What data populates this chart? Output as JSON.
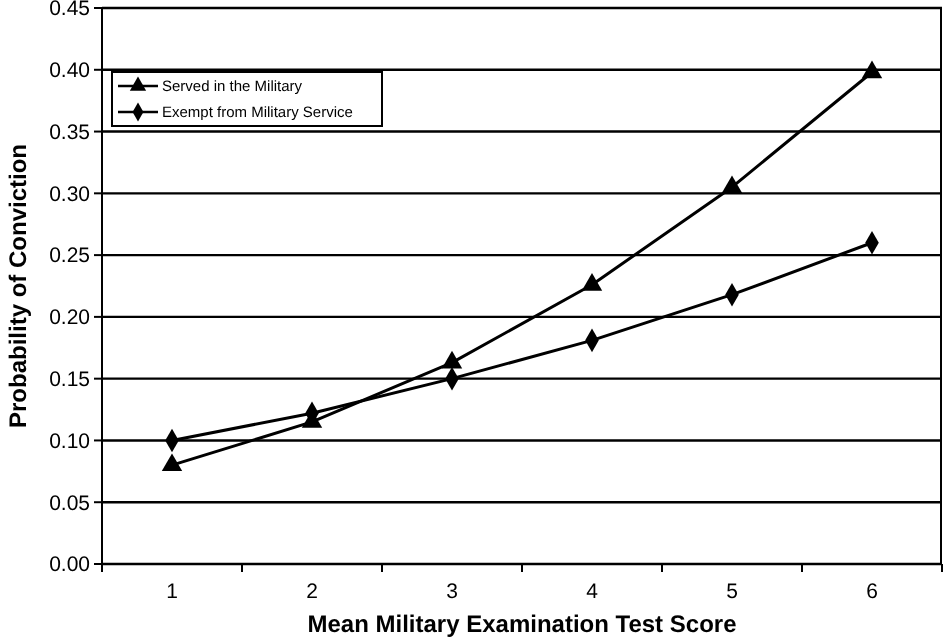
{
  "chart_data": {
    "type": "line",
    "xlabel": "Mean Military Examination Test Score",
    "ylabel": "Probability of Conviction",
    "categories": [
      "1",
      "2",
      "3",
      "4",
      "5",
      "6"
    ],
    "series": [
      {
        "name": "Served in the Military",
        "color": "#000000",
        "marker": "triangle",
        "values": [
          0.08,
          0.115,
          0.163,
          0.226,
          0.305,
          0.398
        ]
      },
      {
        "name": "Exempt from Military Service",
        "color": "#000000",
        "marker": "diamond",
        "values": [
          0.1,
          0.122,
          0.15,
          0.181,
          0.218,
          0.26
        ]
      }
    ],
    "ylim": [
      0,
      0.45
    ],
    "yticks": [
      {
        "value": 0,
        "label": "0.00"
      },
      {
        "value": 0.05,
        "label": "0.05"
      },
      {
        "value": 0.1,
        "label": "0.10"
      },
      {
        "value": 0.15,
        "label": "0.15"
      },
      {
        "value": 0.2,
        "label": "0.20"
      },
      {
        "value": 0.25,
        "label": "0.25"
      },
      {
        "value": 0.3,
        "label": "0.30"
      },
      {
        "value": 0.35,
        "label": "0.35"
      },
      {
        "value": 0.4,
        "label": "0.40"
      },
      {
        "value": 0.45,
        "label": "0.45"
      }
    ],
    "grid": "y",
    "legend": "top left",
    "line_style": "solid"
  }
}
